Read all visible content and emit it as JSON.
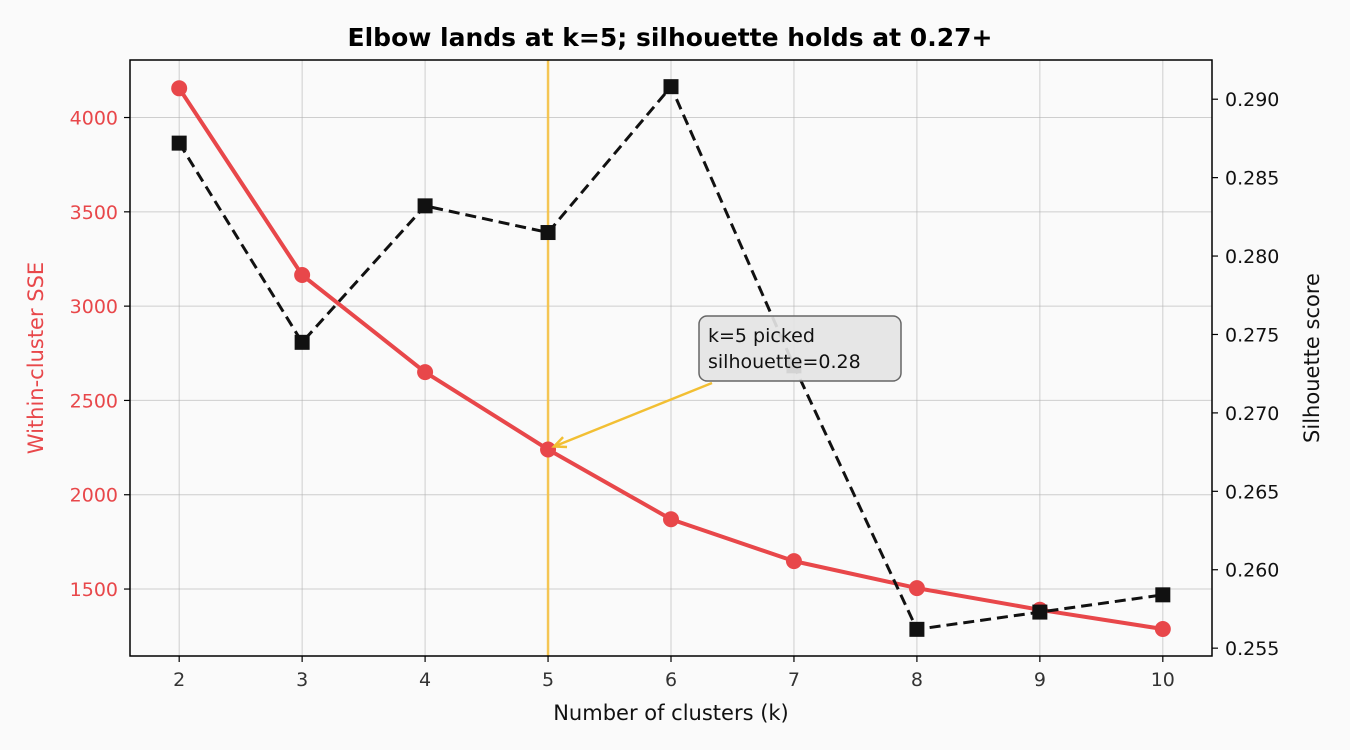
{
  "chart_data": {
    "type": "line",
    "title": "Elbow lands at k=5; silhouette holds at 0.27+",
    "xlabel": "Number of clusters (k)",
    "x": [
      2,
      3,
      4,
      5,
      6,
      7,
      8,
      9,
      10
    ],
    "xlim": [
      1.6,
      10.4
    ],
    "left_axis": {
      "label": "Within-cluster SSE",
      "color": "#e8474a",
      "ylim": [
        1145,
        4305
      ],
      "ticks": [
        1500,
        2000,
        2500,
        3000,
        3500,
        4000
      ]
    },
    "right_axis": {
      "label": "Silhouette score",
      "color": "#222222",
      "ylim": [
        0.2545,
        0.2925
      ],
      "ticks": [
        "0.255",
        "0.260",
        "0.265",
        "0.270",
        "0.275",
        "0.280",
        "0.285",
        "0.290"
      ]
    },
    "series": [
      {
        "axis": "left",
        "color": "#e8474a",
        "marker": "circle",
        "linestyle": "solid",
        "values": [
          4155,
          3165,
          2650,
          2240,
          1870,
          1648,
          1505,
          1390,
          1288
        ]
      },
      {
        "axis": "right",
        "color": "#111111",
        "marker": "square",
        "linestyle": "dashed",
        "values": [
          0.2872,
          0.2745,
          0.2832,
          0.2815,
          0.2908,
          0.273,
          0.2562,
          0.2573,
          0.2584
        ]
      }
    ],
    "highlight": {
      "x": 5,
      "color": "#f6c244"
    },
    "annotation": {
      "lines": [
        "k=5 picked",
        "silhouette=0.28"
      ],
      "point": {
        "x": 5,
        "y": 2240
      },
      "arrow_color": "#f2bf33"
    },
    "grid": true
  }
}
